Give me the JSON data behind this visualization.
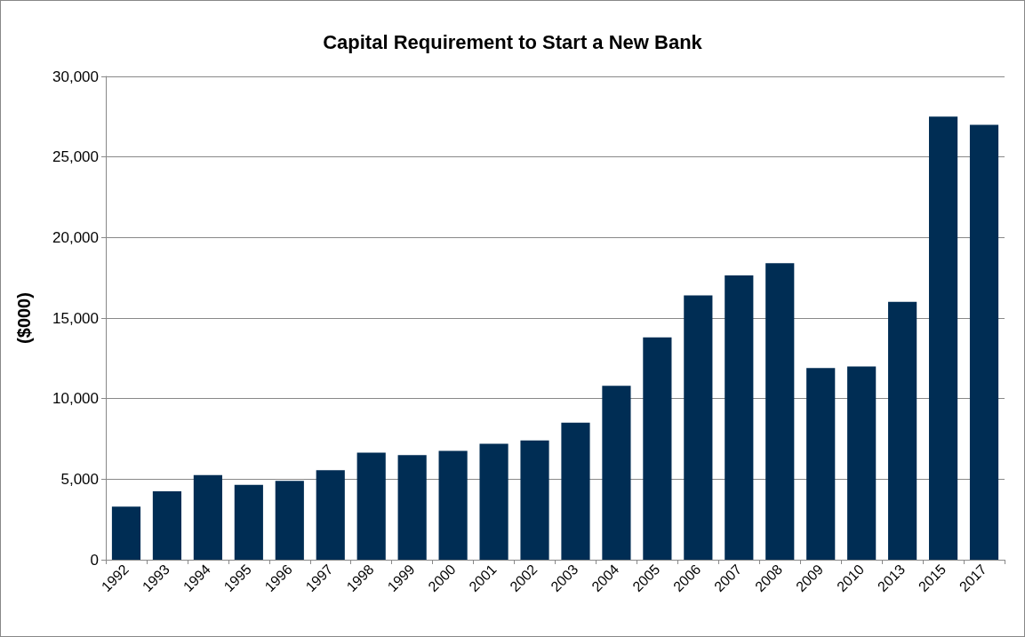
{
  "chart_data": {
    "type": "bar",
    "title": "Capital Requirement to Start a New Bank",
    "ylabel": "($000)",
    "categories": [
      "1992",
      "1993",
      "1994",
      "1995",
      "1996",
      "1997",
      "1998",
      "1999",
      "2000",
      "2001",
      "2002",
      "2003",
      "2004",
      "2005",
      "2006",
      "2007",
      "2008",
      "2009",
      "2010",
      "2013",
      "2015",
      "2017"
    ],
    "series": [
      {
        "color": "#002d54",
        "values": [
          3300,
          4250,
          5250,
          4650,
          4900,
          5550,
          6650,
          6500,
          6750,
          7200,
          7400,
          8500,
          10800,
          13800,
          16400,
          17650,
          18400,
          11900,
          12000,
          16000,
          27500,
          27000
        ]
      }
    ],
    "ylim": [
      0,
      30000
    ],
    "yticks": [
      0,
      {
        "value": 5000,
        "label": "5,000"
      },
      {
        "value": 10000,
        "label": "10,000"
      },
      {
        "value": 15000,
        "label": "15,000"
      },
      {
        "value": 20000,
        "label": "20,000"
      },
      {
        "value": 25000,
        "label": "25,000"
      },
      {
        "value": 30000,
        "label": "30,000"
      }
    ],
    "grid": "y"
  }
}
